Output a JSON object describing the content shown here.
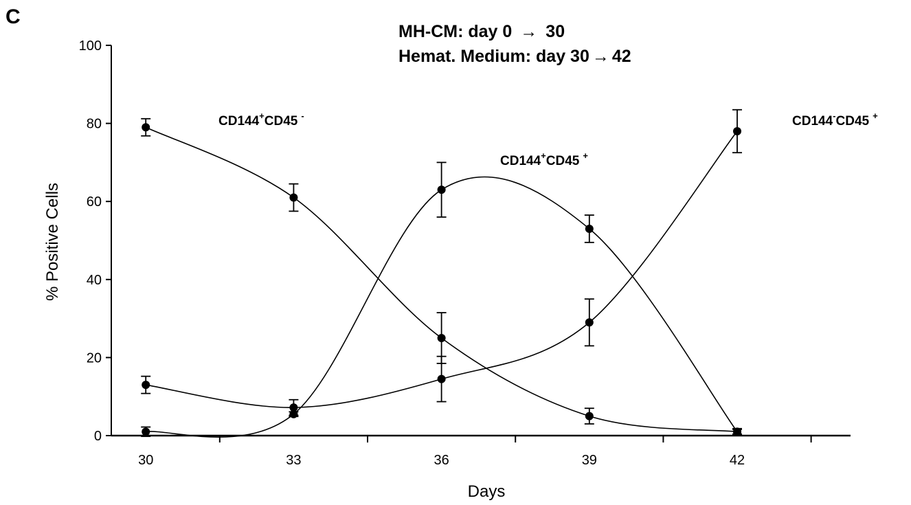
{
  "panel_label": "C",
  "annotations": [
    {
      "prefix": "MH-CM: day 0",
      "suffix": "30"
    },
    {
      "prefix": "Hemat. Medium: day 30",
      "suffix": "42"
    }
  ],
  "chart_data": {
    "type": "line",
    "xlabel": "Days",
    "ylabel": "% Positive Cells",
    "x": [
      30,
      33,
      36,
      39,
      42
    ],
    "x_ticks": [
      "30",
      "33",
      "36",
      "39",
      "42"
    ],
    "y_ticks": [
      "0",
      "20",
      "40",
      "60",
      "80",
      "100"
    ],
    "xlim": [
      29.3,
      44.3
    ],
    "ylim": [
      0,
      100
    ],
    "grid": false,
    "legend": "none (series labelled directly on the plot)",
    "series": [
      {
        "label": {
          "base": "CD144",
          "sup1": "+",
          "mid": "CD45",
          "sup2": "-"
        },
        "values": [
          79,
          61,
          25,
          5,
          1
        ],
        "errors": [
          2.2,
          3.5,
          6.5,
          2,
          0.6
        ]
      },
      {
        "label": {
          "base": "CD144",
          "sup1": "+",
          "mid": "CD45",
          "sup2": "+"
        },
        "values": [
          1,
          5.5,
          63,
          53,
          1
        ],
        "errors": [
          1.2,
          0.6,
          7,
          3.5,
          0.8
        ]
      },
      {
        "label": {
          "base": "CD144",
          "sup1": "-",
          "mid": "CD45",
          "sup2": "+"
        },
        "values": [
          13,
          7.2,
          14.5,
          29,
          78
        ],
        "errors": [
          2.2,
          2,
          5.8,
          6,
          5.5
        ]
      }
    ]
  }
}
